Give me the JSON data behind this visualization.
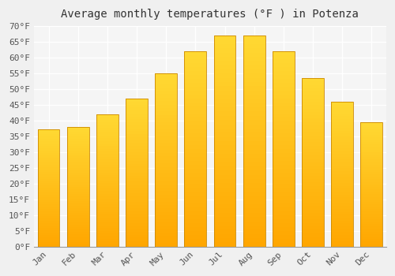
{
  "months": [
    "Jan",
    "Feb",
    "Mar",
    "Apr",
    "May",
    "Jun",
    "Jul",
    "Aug",
    "Sep",
    "Oct",
    "Nov",
    "Dec"
  ],
  "values": [
    37.2,
    38.0,
    42.0,
    47.0,
    55.0,
    62.0,
    67.0,
    67.0,
    62.0,
    53.5,
    46.0,
    39.5
  ],
  "bar_color_top": "#FFDD44",
  "bar_color_bottom": "#FFA500",
  "bar_edge_color": "#CC8800",
  "title": "Average monthly temperatures (°F ) in Potenza",
  "ylim": [
    0,
    70
  ],
  "ytick_step": 5,
  "background_color": "#f0f0f0",
  "plot_bg_color": "#f5f5f5",
  "grid_color": "#ffffff",
  "title_fontsize": 10,
  "tick_fontsize": 8,
  "bar_width": 0.75
}
